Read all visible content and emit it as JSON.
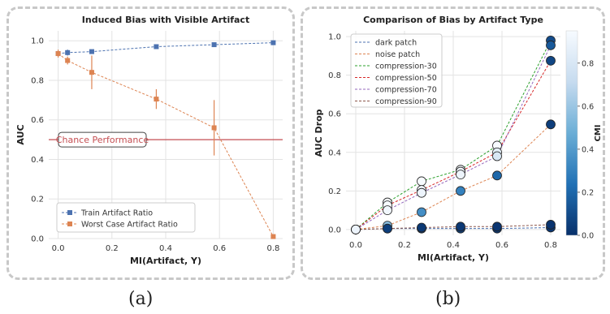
{
  "captions": {
    "a": "(a)",
    "b": "(b)"
  },
  "colors": {
    "blue": "#4c72b0",
    "orange": "#dd8452",
    "chance": "#c44e52",
    "green": "#2ca02c",
    "red": "#d62728",
    "purple": "#9467bd",
    "brown": "#8c564b",
    "grid": "#e3e3e3"
  },
  "chart_data": [
    {
      "type": "line",
      "title": "Induced Bias with Visible Artifact",
      "xlabel": "MI(Artifact, Y)",
      "ylabel": "AUC",
      "xlim": [
        -0.035,
        0.835
      ],
      "ylim": [
        0.0,
        1.05
      ],
      "xticks": [
        "0.0",
        "0.2",
        "0.4",
        "0.6",
        "0.8"
      ],
      "xtick_values": [
        0.0,
        0.2,
        0.4,
        0.6,
        0.8
      ],
      "yticks": [
        "0.0",
        "0.2",
        "0.4",
        "0.6",
        "0.8",
        "1.0"
      ],
      "ytick_values": [
        0.0,
        0.2,
        0.4,
        0.6,
        0.8,
        1.0
      ],
      "grid": true,
      "legend_position": "bottom-left",
      "series": [
        {
          "name": "Train Artifact Ratio",
          "x": [
            0.0,
            0.035,
            0.125,
            0.365,
            0.58,
            0.8
          ],
          "y": [
            0.935,
            0.94,
            0.945,
            0.97,
            0.98,
            0.99
          ],
          "err": [
            0.0,
            0.015,
            0.0,
            0.0,
            0.0,
            0.0
          ]
        },
        {
          "name": "Worst Case Artifact Ratio",
          "x": [
            0.0,
            0.035,
            0.125,
            0.365,
            0.58,
            0.8
          ],
          "y": [
            0.935,
            0.9,
            0.84,
            0.705,
            0.56,
            0.01
          ],
          "err": [
            0.02,
            0.02,
            0.085,
            0.05,
            0.14,
            0.0
          ]
        }
      ],
      "hline": {
        "y": 0.5,
        "label": "Chance Performance"
      }
    },
    {
      "type": "scatter",
      "title": "Comparison of Bias by Artifact Type",
      "xlabel": "MI(Artifact, Y)",
      "ylabel": "AUC Drop",
      "xlim": [
        -0.04,
        0.84
      ],
      "ylim": [
        -0.03,
        1.03
      ],
      "xticks": [
        "0.0",
        "0.2",
        "0.4",
        "0.6",
        "0.8"
      ],
      "xtick_values": [
        0.0,
        0.2,
        0.4,
        0.6,
        0.8
      ],
      "yticks": [
        "0.0",
        "0.2",
        "0.4",
        "0.6",
        "0.8",
        "1.0"
      ],
      "ytick_values": [
        0.0,
        0.2,
        0.4,
        0.6,
        0.8,
        1.0
      ],
      "grid": true,
      "legend_position": "top-left",
      "x": [
        0.0,
        0.13,
        0.27,
        0.43,
        0.58,
        0.8
      ],
      "series": [
        {
          "name": "dark patch",
          "y": [
            0.0,
            0.005,
            0.005,
            0.005,
            0.005,
            0.01
          ],
          "cmi": [
            0.7,
            0.08,
            0.05,
            0.05,
            0.03,
            0.02
          ]
        },
        {
          "name": "noise patch",
          "y": [
            0.0,
            0.02,
            0.09,
            0.2,
            0.28,
            0.545
          ],
          "cmi": [
            0.85,
            0.55,
            0.35,
            0.3,
            0.2,
            0.05
          ]
        },
        {
          "name": "compression-30",
          "y": [
            0.0,
            0.14,
            0.25,
            0.31,
            0.435,
            0.98
          ],
          "cmi": [
            0.95,
            0.95,
            0.95,
            0.95,
            0.95,
            0.1
          ]
        },
        {
          "name": "compression-50",
          "y": [
            0.0,
            0.125,
            0.205,
            0.3,
            0.4,
            0.875
          ],
          "cmi": [
            0.95,
            0.95,
            0.93,
            0.93,
            0.85,
            0.08
          ]
        },
        {
          "name": "compression-70",
          "y": [
            0.0,
            0.1,
            0.19,
            0.285,
            0.38,
            0.955
          ],
          "cmi": [
            0.92,
            0.92,
            0.9,
            0.9,
            0.8,
            0.15
          ]
        },
        {
          "name": "compression-90",
          "y": [
            0.0,
            0.005,
            0.01,
            0.015,
            0.015,
            0.025
          ],
          "cmi": [
            0.9,
            0.05,
            0.03,
            0.03,
            0.02,
            0.01
          ]
        }
      ],
      "colorbar": {
        "label": "CMI",
        "range": [
          0.0,
          0.95
        ],
        "ticks": [
          "0.0",
          "0.2",
          "0.4",
          "0.6",
          "0.8"
        ],
        "tick_values": [
          0.0,
          0.2,
          0.4,
          0.6,
          0.8
        ]
      }
    }
  ]
}
